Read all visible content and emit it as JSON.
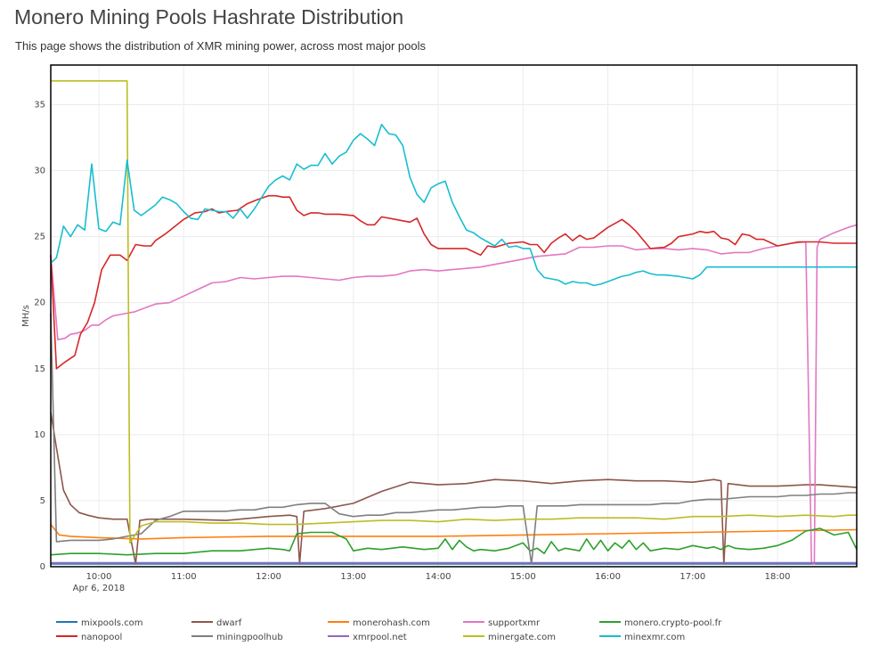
{
  "page": {
    "title": "Monero Mining Pools Hashrate Distribution",
    "subtitle": "This page shows the distribution of XMR mining power, across most major pools"
  },
  "chart_data": {
    "type": "line",
    "title": "",
    "xlabel": "",
    "ylabel": "MH/s",
    "xlim": [
      "09:26",
      "18:56"
    ],
    "ylim": [
      0,
      38
    ],
    "grid": true,
    "legend_position": "bottom",
    "x_ticks": [
      "10:00",
      "11:00",
      "12:00",
      "13:00",
      "14:00",
      "15:00",
      "16:00",
      "17:00",
      "18:00"
    ],
    "x_date_label": "Apr 6, 2018",
    "y_ticks": [
      0,
      5,
      10,
      15,
      20,
      25,
      30,
      35
    ],
    "series": [
      {
        "name": "mixpools.com",
        "color": "#1f77b4",
        "x": [
          "09:26",
          "18:56"
        ],
        "y": [
          0.2,
          0.2
        ]
      },
      {
        "name": "dwarf",
        "color": "#8c564b",
        "x": [
          "09:26",
          "09:30",
          "09:35",
          "09:40",
          "09:46",
          "09:52",
          "10:00",
          "10:10",
          "10:20",
          "10:26",
          "10:29",
          "10:35",
          "11:00",
          "11:30",
          "12:00",
          "12:15",
          "12:20",
          "12:22",
          "12:25",
          "12:40",
          "13:00",
          "13:20",
          "13:40",
          "14:00",
          "14:20",
          "14:40",
          "15:00",
          "15:20",
          "15:40",
          "16:00",
          "16:20",
          "16:40",
          "17:00",
          "17:15",
          "17:20",
          "17:22",
          "17:25",
          "17:40",
          "18:00",
          "18:20",
          "18:30",
          "18:56"
        ],
        "y": [
          11.7,
          9,
          5.8,
          4.7,
          4.1,
          3.9,
          3.7,
          3.6,
          3.6,
          0.2,
          3.5,
          3.6,
          3.6,
          3.5,
          3.8,
          3.9,
          3.8,
          0.2,
          4.2,
          4.4,
          4.8,
          5.7,
          6.4,
          6.2,
          6.3,
          6.6,
          6.5,
          6.3,
          6.5,
          6.6,
          6.5,
          6.5,
          6.4,
          6.6,
          6.5,
          0.2,
          6.3,
          6.1,
          6.1,
          6.2,
          6.2,
          6.0
        ]
      },
      {
        "name": "monerohash.com",
        "color": "#ff7f0e",
        "x": [
          "09:26",
          "09:32",
          "09:40",
          "10:00",
          "10:30",
          "11:00",
          "12:00",
          "13:00",
          "14:00",
          "15:00",
          "16:00",
          "17:00",
          "18:00",
          "18:56"
        ],
        "y": [
          3.2,
          2.4,
          2.3,
          2.2,
          2.1,
          2.2,
          2.3,
          2.3,
          2.3,
          2.4,
          2.5,
          2.6,
          2.7,
          2.8
        ]
      },
      {
        "name": "supportxmr",
        "color": "#e377c2",
        "x": [
          "09:26",
          "09:31",
          "09:36",
          "09:40",
          "09:45",
          "09:50",
          "09:55",
          "10:00",
          "10:05",
          "10:10",
          "10:15",
          "10:20",
          "10:25",
          "10:30",
          "10:40",
          "10:50",
          "11:00",
          "11:10",
          "11:20",
          "11:30",
          "11:40",
          "11:50",
          "12:00",
          "12:10",
          "12:20",
          "12:30",
          "12:40",
          "12:50",
          "13:00",
          "13:10",
          "13:20",
          "13:30",
          "13:40",
          "13:50",
          "14:00",
          "14:10",
          "14:20",
          "14:30",
          "14:40",
          "14:50",
          "15:00",
          "15:10",
          "15:20",
          "15:30",
          "15:40",
          "15:50",
          "16:00",
          "16:10",
          "16:20",
          "16:30",
          "16:40",
          "16:50",
          "17:00",
          "17:10",
          "17:20",
          "17:30",
          "17:40",
          "17:50",
          "18:00",
          "18:10",
          "18:20",
          "18:24",
          "18:26",
          "18:28",
          "18:30",
          "18:40",
          "18:50",
          "18:56"
        ],
        "y": [
          23.6,
          17.2,
          17.3,
          17.6,
          17.7,
          17.9,
          18.3,
          18.3,
          18.7,
          19,
          19.1,
          19.2,
          19.3,
          19.5,
          19.9,
          20.0,
          20.5,
          21.0,
          21.5,
          21.6,
          21.9,
          21.8,
          21.9,
          22.0,
          22.0,
          21.9,
          21.8,
          21.7,
          21.9,
          22.0,
          22.0,
          22.1,
          22.4,
          22.5,
          22.4,
          22.5,
          22.6,
          22.7,
          22.9,
          23.1,
          23.3,
          23.5,
          23.6,
          23.7,
          24.2,
          24.2,
          24.3,
          24.3,
          24.0,
          24.1,
          24.1,
          24.0,
          24.1,
          24.0,
          23.7,
          23.8,
          23.8,
          24.1,
          24.3,
          24.5,
          24.6,
          0.3,
          0.2,
          24.2,
          24.8,
          25.3,
          25.7,
          25.9
        ]
      },
      {
        "name": "monero.crypto-pool.fr",
        "color": "#2ca02c",
        "x": [
          "09:26",
          "09:40",
          "10:00",
          "10:20",
          "10:40",
          "11:00",
          "11:20",
          "11:40",
          "12:00",
          "12:10",
          "12:15",
          "12:20",
          "12:30",
          "12:45",
          "12:55",
          "13:00",
          "13:10",
          "13:20",
          "13:35",
          "13:50",
          "14:00",
          "14:05",
          "14:10",
          "14:15",
          "14:20",
          "14:25",
          "14:30",
          "14:40",
          "14:50",
          "15:00",
          "15:05",
          "15:10",
          "15:15",
          "15:20",
          "15:25",
          "15:30",
          "15:40",
          "15:45",
          "15:50",
          "15:55",
          "16:00",
          "16:05",
          "16:10",
          "16:15",
          "16:20",
          "16:25",
          "16:30",
          "16:40",
          "16:50",
          "17:00",
          "17:10",
          "17:15",
          "17:20",
          "17:25",
          "17:30",
          "17:40",
          "17:50",
          "18:00",
          "18:10",
          "18:20",
          "18:30",
          "18:40",
          "18:50",
          "18:56"
        ],
        "y": [
          0.9,
          1.0,
          1.0,
          0.9,
          1.0,
          1.0,
          1.2,
          1.2,
          1.4,
          1.3,
          1.2,
          2.5,
          2.6,
          2.6,
          2.1,
          1.2,
          1.4,
          1.3,
          1.5,
          1.3,
          1.4,
          2.1,
          1.3,
          2.0,
          1.5,
          1.2,
          1.3,
          1.2,
          1.4,
          1.8,
          1.2,
          1.4,
          1.0,
          1.9,
          1.2,
          1.4,
          1.2,
          2.1,
          1.3,
          2.0,
          1.2,
          1.8,
          1.4,
          2.0,
          1.3,
          1.8,
          1.2,
          1.4,
          1.3,
          1.6,
          1.4,
          1.5,
          1.3,
          1.6,
          1.4,
          1.3,
          1.4,
          1.6,
          2.0,
          2.7,
          2.9,
          2.4,
          2.6,
          1.3
        ]
      },
      {
        "name": "nanopool",
        "color": "#d62728",
        "x": [
          "09:26",
          "09:30",
          "09:36",
          "09:43",
          "09:47",
          "09:52",
          "09:57",
          "10:02",
          "10:08",
          "10:15",
          "10:20",
          "10:26",
          "10:32",
          "10:37",
          "10:40",
          "10:47",
          "11:00",
          "11:08",
          "11:15",
          "11:20",
          "11:25",
          "11:30",
          "11:38",
          "11:45",
          "11:52",
          "12:00",
          "12:05",
          "12:10",
          "12:15",
          "12:20",
          "12:25",
          "12:30",
          "12:35",
          "12:40",
          "12:50",
          "13:00",
          "13:05",
          "13:10",
          "13:15",
          "13:20",
          "13:30",
          "13:40",
          "13:45",
          "13:50",
          "13:55",
          "14:00",
          "14:10",
          "14:20",
          "14:30",
          "14:35",
          "14:40",
          "14:50",
          "15:00",
          "15:05",
          "15:10",
          "15:15",
          "15:20",
          "15:25",
          "15:30",
          "15:35",
          "15:40",
          "15:45",
          "15:50",
          "16:00",
          "16:05",
          "16:10",
          "16:15",
          "16:20",
          "16:30",
          "16:40",
          "16:45",
          "16:50",
          "17:00",
          "17:05",
          "17:10",
          "17:15",
          "17:20",
          "17:25",
          "17:30",
          "17:35",
          "17:40",
          "17:45",
          "17:50",
          "18:00",
          "18:05",
          "18:10",
          "18:15",
          "18:20",
          "18:30",
          "18:40",
          "18:50",
          "18:56"
        ],
        "y": [
          23.6,
          15.0,
          15.5,
          16.0,
          17.6,
          18.5,
          20.0,
          22.5,
          23.6,
          23.6,
          23.2,
          24.4,
          24.3,
          24.3,
          24.7,
          25.2,
          26.3,
          26.8,
          26.9,
          27.1,
          26.8,
          26.9,
          27.0,
          27.5,
          27.8,
          28.1,
          28.1,
          28.0,
          28.0,
          27.0,
          26.6,
          26.8,
          26.8,
          26.7,
          26.7,
          26.6,
          26.2,
          25.9,
          25.9,
          26.5,
          26.3,
          26.1,
          26.4,
          25.2,
          24.4,
          24.1,
          24.1,
          24.1,
          23.6,
          24.3,
          24.2,
          24.5,
          24.6,
          24.4,
          24.4,
          23.8,
          24.5,
          24.9,
          25.2,
          24.7,
          25.1,
          24.8,
          24.9,
          25.7,
          26.0,
          26.3,
          25.9,
          25.4,
          24.1,
          24.2,
          24.5,
          25.0,
          25.2,
          25.4,
          25.3,
          25.4,
          24.9,
          24.8,
          24.4,
          25.2,
          25.1,
          24.8,
          24.8,
          24.3,
          24.4,
          24.5,
          24.6,
          24.6,
          24.6,
          24.5,
          24.5,
          24.5
        ]
      },
      {
        "name": "miningpoolhub",
        "color": "#7f7f7f",
        "x": [
          "09:26",
          "09:30",
          "09:40",
          "09:50",
          "10:00",
          "10:10",
          "10:20",
          "10:30",
          "10:40",
          "10:50",
          "11:00",
          "11:10",
          "11:20",
          "11:30",
          "11:40",
          "11:50",
          "12:00",
          "12:10",
          "12:20",
          "12:30",
          "12:40",
          "12:50",
          "13:00",
          "13:10",
          "13:20",
          "13:30",
          "13:40",
          "13:50",
          "14:00",
          "14:10",
          "14:20",
          "14:30",
          "14:40",
          "14:50",
          "15:00",
          "15:06",
          "15:10",
          "15:20",
          "15:30",
          "15:40",
          "15:50",
          "16:00",
          "16:10",
          "16:20",
          "16:30",
          "16:40",
          "16:50",
          "17:00",
          "17:10",
          "17:20",
          "17:30",
          "17:40",
          "17:50",
          "18:00",
          "18:10",
          "18:20",
          "18:30",
          "18:40",
          "18:50",
          "18:56"
        ],
        "y": [
          19.2,
          1.9,
          2.0,
          2.0,
          2.0,
          2.1,
          2.3,
          2.5,
          3.5,
          3.8,
          4.2,
          4.2,
          4.2,
          4.2,
          4.3,
          4.3,
          4.5,
          4.5,
          4.7,
          4.8,
          4.8,
          4.0,
          3.8,
          3.9,
          3.9,
          4.1,
          4.1,
          4.2,
          4.3,
          4.3,
          4.4,
          4.5,
          4.5,
          4.6,
          4.6,
          0.2,
          4.6,
          4.6,
          4.6,
          4.7,
          4.7,
          4.7,
          4.7,
          4.7,
          4.7,
          4.8,
          4.8,
          5.0,
          5.1,
          5.1,
          5.2,
          5.3,
          5.3,
          5.3,
          5.4,
          5.4,
          5.5,
          5.5,
          5.6,
          5.6
        ]
      },
      {
        "name": "xmrpool.net",
        "color": "#9467bd",
        "x": [
          "09:26",
          "18:56"
        ],
        "y": [
          0.3,
          0.3
        ]
      },
      {
        "name": "minergate.com",
        "color": "#bcbd22",
        "x": [
          "09:26",
          "10:20",
          "10:22",
          "10:30",
          "10:40",
          "11:00",
          "11:20",
          "11:40",
          "12:00",
          "12:20",
          "12:40",
          "13:00",
          "13:20",
          "13:40",
          "14:00",
          "14:20",
          "14:40",
          "15:00",
          "15:20",
          "15:40",
          "16:00",
          "16:20",
          "16:40",
          "17:00",
          "17:20",
          "17:40",
          "18:00",
          "18:20",
          "18:40",
          "18:50",
          "18:56"
        ],
        "y": [
          36.8,
          36.8,
          1.8,
          3.1,
          3.4,
          3.4,
          3.3,
          3.3,
          3.2,
          3.2,
          3.3,
          3.4,
          3.5,
          3.5,
          3.4,
          3.6,
          3.5,
          3.6,
          3.6,
          3.7,
          3.7,
          3.7,
          3.6,
          3.8,
          3.8,
          3.9,
          3.8,
          3.9,
          3.8,
          3.9,
          3.9
        ]
      },
      {
        "name": "minexmr.com",
        "color": "#17becf",
        "x": [
          "09:26",
          "09:30",
          "09:35",
          "09:40",
          "09:45",
          "09:50",
          "09:55",
          "10:00",
          "10:05",
          "10:10",
          "10:15",
          "10:20",
          "10:25",
          "10:30",
          "10:35",
          "10:40",
          "10:45",
          "10:50",
          "10:55",
          "11:00",
          "11:05",
          "11:10",
          "11:15",
          "11:20",
          "11:25",
          "11:30",
          "11:35",
          "11:40",
          "11:45",
          "11:50",
          "12:00",
          "12:05",
          "12:10",
          "12:15",
          "12:20",
          "12:25",
          "12:30",
          "12:35",
          "12:40",
          "12:45",
          "12:50",
          "12:55",
          "13:00",
          "13:05",
          "13:10",
          "13:15",
          "13:20",
          "13:25",
          "13:30",
          "13:35",
          "13:40",
          "13:45",
          "13:50",
          "13:55",
          "14:00",
          "14:05",
          "14:10",
          "14:15",
          "14:20",
          "14:25",
          "14:30",
          "14:35",
          "14:40",
          "14:45",
          "14:50",
          "14:55",
          "15:00",
          "15:05",
          "15:10",
          "15:15",
          "15:20",
          "15:25",
          "15:30",
          "15:35",
          "15:40",
          "15:45",
          "15:50",
          "15:55",
          "16:00",
          "16:10",
          "16:15",
          "16:20",
          "16:25",
          "16:30",
          "16:35",
          "16:40",
          "16:50",
          "17:00",
          "17:05",
          "17:10",
          "17:15",
          "17:20",
          "17:25",
          "17:30",
          "17:35",
          "17:40",
          "17:45",
          "17:50",
          "17:55",
          "18:00",
          "18:05",
          "18:10",
          "18:15",
          "18:20",
          "18:25",
          "18:30",
          "18:35",
          "18:40",
          "18:45",
          "18:50",
          "18:56"
        ],
        "y": [
          23.0,
          23.4,
          25.8,
          25.0,
          25.9,
          25.5,
          30.5,
          25.6,
          25.4,
          26.1,
          25.9,
          30.8,
          27.0,
          26.6,
          27.0,
          27.4,
          28.0,
          27.8,
          27.5,
          26.9,
          26.4,
          26.3,
          27.1,
          27.0,
          26.9,
          26.9,
          26.4,
          27.1,
          26.4,
          27.1,
          28.8,
          29.3,
          29.6,
          29.3,
          30.5,
          30.1,
          30.4,
          30.4,
          31.3,
          30.5,
          31.1,
          31.4,
          32.3,
          32.8,
          32.4,
          31.9,
          33.5,
          32.8,
          32.7,
          31.9,
          29.5,
          28.2,
          27.6,
          28.7,
          29.0,
          29.2,
          27.6,
          26.5,
          25.5,
          25.3,
          24.9,
          24.6,
          24.3,
          24.8,
          24.2,
          24.3,
          24.1,
          24.1,
          22.5,
          21.9,
          21.8,
          21.7,
          21.4,
          21.6,
          21.5,
          21.5,
          21.3,
          21.4,
          21.6,
          22.0,
          22.1,
          22.3,
          22.4,
          22.2,
          22.1,
          22.1,
          22.0,
          21.8,
          22.1,
          22.7,
          22.7,
          22.7,
          22.7,
          22.7,
          22.7,
          22.7,
          22.7,
          22.7,
          22.7,
          22.7,
          22.7,
          22.7,
          22.7,
          22.7,
          22.7,
          22.7,
          22.7,
          22.7,
          22.7,
          22.7,
          22.7
        ]
      }
    ]
  }
}
